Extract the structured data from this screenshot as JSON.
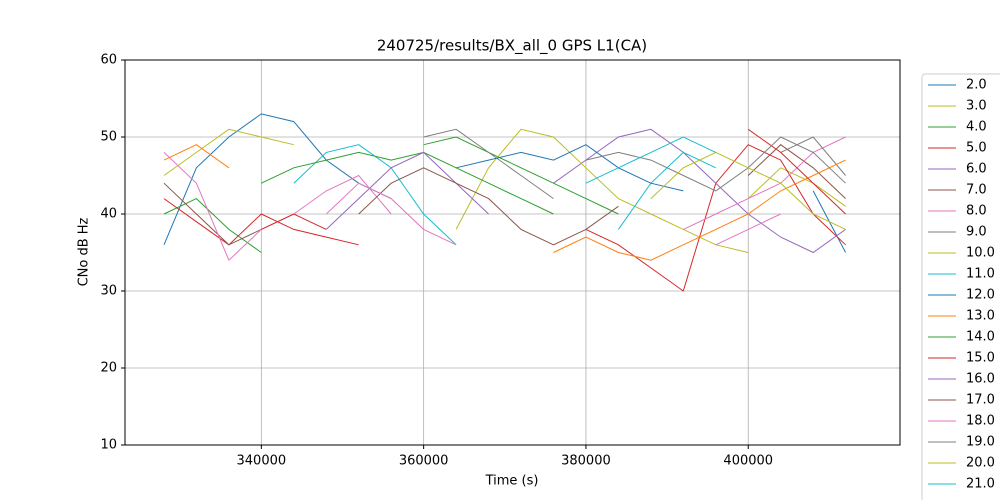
{
  "chart_data": {
    "type": "line",
    "title": "240725/results/BX_all_0 GPS L1(CA)",
    "x_label": "Time (s)",
    "y_label": "CNo dB Hz",
    "x": [
      328000,
      332000,
      336000,
      340000,
      344000,
      348000,
      352000,
      356000,
      360000,
      364000,
      368000,
      372000,
      376000,
      380000,
      384000,
      388000,
      392000,
      396000,
      400000,
      404000,
      408000,
      412000
    ],
    "xlim": [
      323200,
      418700
    ],
    "xticks": [
      340000,
      360000,
      380000,
      400000
    ],
    "ylim": [
      10,
      60
    ],
    "yticks": [
      10,
      20,
      30,
      40,
      50,
      60
    ],
    "grid": true,
    "series": [
      {
        "name": "2.0",
        "color": "#1f77b4",
        "values": [
          36,
          46,
          50,
          53,
          52,
          47,
          44,
          42,
          null,
          null,
          null,
          null,
          null,
          null,
          null,
          null,
          null,
          null,
          null,
          null,
          43,
          35
        ]
      },
      {
        "name": "3.0",
        "color": "#bcbd22",
        "values": [
          45,
          48,
          51,
          50,
          49,
          null,
          null,
          null,
          null,
          null,
          null,
          null,
          null,
          null,
          null,
          null,
          null,
          null,
          42,
          46,
          44,
          41
        ]
      },
      {
        "name": "4.0",
        "color": "#2ca02c",
        "values": [
          40,
          42,
          38,
          35,
          null,
          null,
          null,
          null,
          49,
          50,
          48,
          46,
          44,
          42,
          40,
          null,
          null,
          null,
          null,
          null,
          null,
          null
        ]
      },
      {
        "name": "5.0",
        "color": "#d62728",
        "values": [
          42,
          39,
          36,
          40,
          38,
          37,
          36,
          null,
          null,
          null,
          null,
          null,
          null,
          38,
          36,
          33,
          30,
          44,
          49,
          47,
          40,
          36
        ]
      },
      {
        "name": "6.0",
        "color": "#9467bd",
        "values": [
          null,
          null,
          null,
          null,
          null,
          null,
          null,
          null,
          null,
          null,
          null,
          null,
          44,
          47,
          50,
          51,
          48,
          44,
          40,
          37,
          35,
          38
        ]
      },
      {
        "name": "7.0",
        "color": "#8c564b",
        "values": [
          44,
          40,
          36,
          38,
          null,
          null,
          null,
          null,
          null,
          null,
          null,
          null,
          null,
          null,
          null,
          null,
          null,
          null,
          45,
          49,
          46,
          42
        ]
      },
      {
        "name": "8.0",
        "color": "#e377c2",
        "values": [
          48,
          44,
          34,
          38,
          40,
          43,
          45,
          40,
          null,
          null,
          null,
          null,
          null,
          null,
          null,
          null,
          38,
          40,
          42,
          44,
          48,
          50
        ]
      },
      {
        "name": "9.0",
        "color": "#7f7f7f",
        "values": [
          null,
          null,
          null,
          null,
          null,
          null,
          null,
          null,
          50,
          51,
          48,
          45,
          42,
          null,
          null,
          null,
          null,
          null,
          null,
          48,
          50,
          45
        ]
      },
      {
        "name": "10.0",
        "color": "#bcbd22",
        "values": [
          null,
          null,
          null,
          null,
          null,
          null,
          null,
          null,
          null,
          38,
          46,
          51,
          50,
          46,
          42,
          40,
          38,
          36,
          35,
          null,
          null,
          null
        ]
      },
      {
        "name": "11.0",
        "color": "#17becf",
        "values": [
          null,
          null,
          null,
          null,
          44,
          48,
          49,
          46,
          40,
          36,
          null,
          null,
          null,
          null,
          38,
          44,
          48,
          46,
          null,
          null,
          null,
          null
        ]
      },
      {
        "name": "12.0",
        "color": "#1f77b4",
        "values": [
          null,
          null,
          null,
          null,
          null,
          null,
          null,
          null,
          null,
          46,
          47,
          48,
          47,
          49,
          46,
          44,
          43,
          null,
          null,
          null,
          null,
          null
        ]
      },
      {
        "name": "13.0",
        "color": "#ff7f0e",
        "values": [
          47,
          49,
          46,
          null,
          null,
          null,
          null,
          null,
          null,
          null,
          null,
          null,
          35,
          37,
          35,
          34,
          36,
          38,
          40,
          43,
          45,
          47
        ]
      },
      {
        "name": "14.0",
        "color": "#2ca02c",
        "values": [
          null,
          null,
          null,
          44,
          46,
          47,
          48,
          47,
          48,
          46,
          44,
          42,
          40,
          null,
          null,
          null,
          null,
          null,
          null,
          null,
          null,
          null
        ]
      },
      {
        "name": "15.0",
        "color": "#d62728",
        "values": [
          null,
          null,
          null,
          38,
          40,
          38,
          null,
          null,
          null,
          null,
          null,
          null,
          null,
          null,
          null,
          null,
          null,
          null,
          51,
          48,
          44,
          40
        ]
      },
      {
        "name": "16.0",
        "color": "#9467bd",
        "values": [
          null,
          null,
          null,
          null,
          null,
          38,
          42,
          46,
          48,
          44,
          40,
          null,
          null,
          null,
          null,
          null,
          null,
          null,
          null,
          null,
          null,
          null
        ]
      },
      {
        "name": "17.0",
        "color": "#8c564b",
        "values": [
          null,
          null,
          null,
          null,
          null,
          null,
          40,
          44,
          46,
          44,
          42,
          38,
          36,
          38,
          41,
          null,
          null,
          null,
          null,
          null,
          null,
          null
        ]
      },
      {
        "name": "18.0",
        "color": "#e377c2",
        "values": [
          null,
          null,
          null,
          null,
          null,
          40,
          44,
          42,
          38,
          36,
          null,
          null,
          null,
          null,
          null,
          null,
          null,
          36,
          38,
          40,
          null,
          null
        ]
      },
      {
        "name": "19.0",
        "color": "#7f7f7f",
        "values": [
          null,
          null,
          null,
          null,
          null,
          null,
          null,
          null,
          null,
          null,
          null,
          null,
          null,
          47,
          48,
          47,
          45,
          43,
          46,
          50,
          48,
          44
        ]
      },
      {
        "name": "20.0",
        "color": "#bcbd22",
        "values": [
          null,
          null,
          null,
          null,
          null,
          null,
          null,
          null,
          null,
          null,
          null,
          null,
          null,
          null,
          null,
          42,
          46,
          48,
          46,
          44,
          40,
          38
        ]
      },
      {
        "name": "21.0",
        "color": "#17becf",
        "values": [
          null,
          null,
          null,
          null,
          null,
          null,
          null,
          null,
          null,
          null,
          null,
          null,
          null,
          44,
          46,
          48,
          50,
          48,
          null,
          null,
          null,
          null
        ]
      }
    ]
  }
}
